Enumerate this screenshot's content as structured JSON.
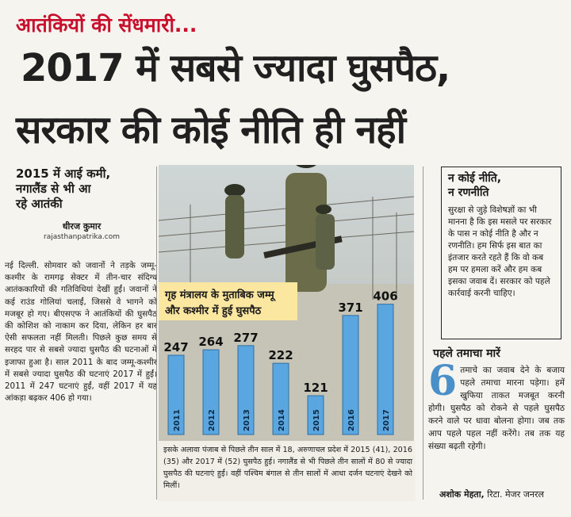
{
  "kicker": "आतंकियों की सेंधमारी...",
  "headline": {
    "line1": "2017 में सबसे ज्यादा घुसपैठ,",
    "line2": "सरकार की कोई नीति ही नहीं"
  },
  "left": {
    "subhead_lines": [
      "2015 में आई कमी,",
      "नगालैंड से भी आ",
      "रहे आतंकी"
    ],
    "byline": "धीरज कुमार",
    "byline_site": "rajasthanpatrika.com",
    "body": "नई दिल्ली. सोमवार को जवानों ने तड़के जम्मू-कश्मीर के रामगढ़ सेक्टर में तीन-चार संदिग्ध आतंककारियों की गतिविधियां देखीं हुईं। जवानों ने कई राउंड गोलियां चलाईं, जिससे वे भागने को मजबूर हो गए। बीएसएफ ने आतंकियों की घुसपैठ की कोशिश को नाकाम कर दिया, लेकिन हर बार ऐसी सफलता नहीं मिलती। पिछले कुछ समय से सरहद पार से सबसे ज्यादा घुसपैठ की घटनाओं में इजाफा हुआ है। साल 2011 के बाद जम्मू-कश्मीर में सबसे ज्यादा घुसपैठ की घटनाएं 2017 में हुईं। 2011 में 247 घटनाएं हुईं, वहीं 2017 में यह आंकड़ा बढ़कर 406 हो गया।"
  },
  "chart_data": {
    "type": "bar",
    "title_lines": [
      "गृह मंत्रालय के मुताबिक जम्मू",
      "और कश्मीर में हुई घुसपैठ"
    ],
    "categories": [
      "2011",
      "2012",
      "2013",
      "2014",
      "2015",
      "2016",
      "2017"
    ],
    "values": [
      247,
      264,
      277,
      222,
      121,
      371,
      406
    ],
    "ylim": [
      0,
      420
    ],
    "bar_color": "#5aa6e0",
    "title_bg": "#fbe7a0"
  },
  "caption": "इसके अलावा पंजाब से पिछले तीन साल में 18, अरुणाचल प्रदेश में 2015 (41), 2016 (35) और 2017 में (52) घुसपैठ हुई। नगालैंड से भी पिछले तीन सालों में 80 से ज्यादा घुसपैठ की घटनाएं हुईं। वहीं पश्चिम बंगाल से तीन सालों में आधा दर्जन घटनाएं देखने को मिलीं।",
  "right_box": {
    "title_lines": [
      "न कोई नीति,",
      "न रणनीति"
    ],
    "body": "सुरक्षा से जुड़े विशेषज्ञों का भी मानना है कि इस मसले पर सरकार के पास न कोई नीति है और न रणनीति। हम सिर्फ इस बात का इंतजार करते रहते हैं कि वो कब हम पर हमला करें और हम कब इसका जवाब दें। सरकार को पहले कार्रवाई करनी चाहिए।"
  },
  "right2": {
    "title": "पहले तमाचा मारें",
    "dropcap": "6",
    "body": "तमाचे का जवाब देने के बजाय पहले तमाचा मारना पड़ेगा। हमें खुफिया ताकत मजबूत करनी होगी। घुसपैठ को रोकने से पहले घुसपैठ करने वाले पर धावा बोलना होगा। जब तक आप पहले पहल नहीं करेंगे। तब तक यह संख्या बढ़ती रहेगी।",
    "sign_name": "अशोक मेहता,",
    "sign_rank": " रिटा. मेजर जनरल"
  }
}
